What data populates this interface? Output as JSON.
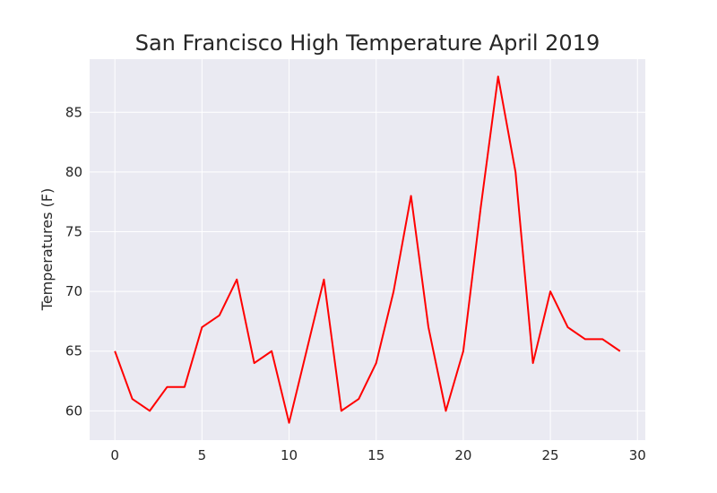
{
  "chart_data": {
    "type": "line",
    "title": "San Francisco High Temperature April 2019",
    "xlabel": "",
    "ylabel": "Temperatures (F)",
    "x": [
      0,
      1,
      2,
      3,
      4,
      5,
      6,
      7,
      8,
      9,
      10,
      11,
      12,
      13,
      14,
      15,
      16,
      17,
      18,
      19,
      20,
      21,
      22,
      23,
      24,
      25,
      26,
      27,
      28,
      29
    ],
    "series": [
      {
        "values": [
          65,
          61,
          60,
          62,
          62,
          67,
          68,
          71,
          64,
          65,
          59,
          65,
          71,
          60,
          61,
          64,
          70,
          78,
          67,
          60,
          65,
          77,
          88,
          80,
          64,
          70,
          67,
          66,
          66,
          65
        ],
        "color": "#ff0000"
      }
    ],
    "xlim": [
      -1.45,
      30.45
    ],
    "ylim": [
      57.55,
      89.45
    ],
    "xticks": [
      0,
      5,
      10,
      15,
      20,
      25,
      30
    ],
    "yticks": [
      60,
      65,
      70,
      75,
      80,
      85
    ],
    "grid": true,
    "background": "#eaeaf2",
    "grid_color": "#ffffff"
  }
}
